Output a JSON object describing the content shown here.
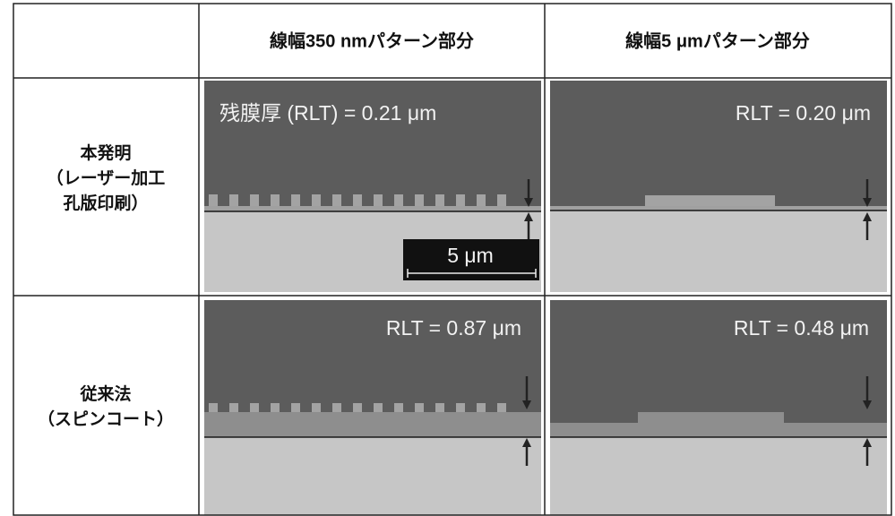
{
  "table": {
    "header": [
      "線幅350 nmパターン部分",
      "線幅5 μmパターン部分"
    ],
    "rows": [
      {
        "label": [
          "本発明",
          "（レーザー加工",
          "孔版印刷）"
        ],
        "images": [
          {
            "caption": "残膜厚 (RLT) = 0.21 μm",
            "scale_bar": "5 μm"
          },
          {
            "caption": "RLT = 0.20 μm"
          }
        ]
      },
      {
        "label": [
          "従来法",
          "（スピンコート）"
        ],
        "images": [
          {
            "caption": "RLT = 0.87 μm"
          },
          {
            "caption": "RLT = 0.48 μm"
          }
        ]
      }
    ]
  }
}
